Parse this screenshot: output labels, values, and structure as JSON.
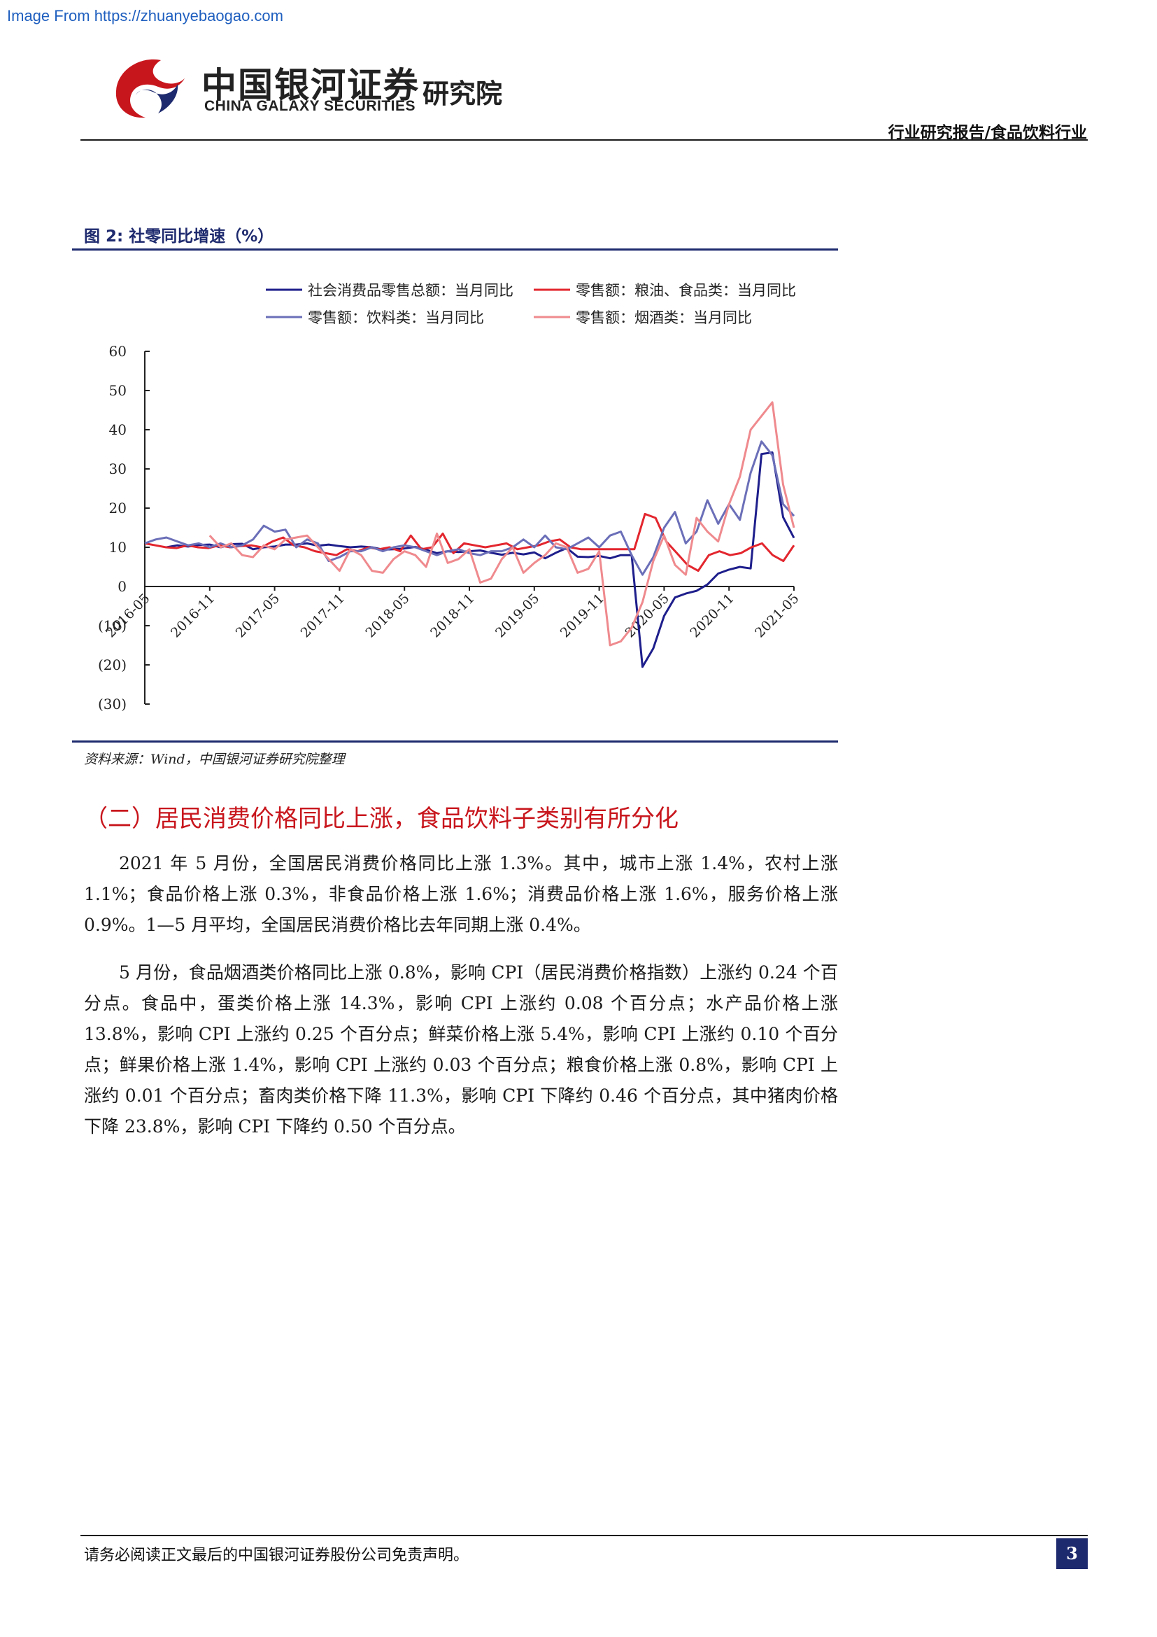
{
  "watermark": "Image From https://zhuanyebaogao.com",
  "header": {
    "brand_cn": "中国银河证券",
    "brand_en": "CHINA GALAXY SECURITIES",
    "institute": "研究院",
    "report_type": "行业研究报告/食品饮料行业",
    "colors": {
      "logo_red": "#c8161d",
      "logo_blue": "#1e2a6e"
    }
  },
  "figure": {
    "title": "图 2: 社零同比增速（%）",
    "source": "资料来源：Wind，中国银河证券研究院整理"
  },
  "chart_data": {
    "type": "line",
    "title": "",
    "xlabel": "",
    "ylabel": "",
    "ylim": [
      -30,
      60
    ],
    "y_ticks": [
      60,
      50,
      40,
      30,
      20,
      10,
      0,
      -10,
      -20,
      -30
    ],
    "y_tick_labels": [
      "60",
      "50",
      "40",
      "30",
      "20",
      "10",
      "0",
      "(10)",
      "(20)",
      "(30)"
    ],
    "x_tick_labels": [
      "2016-05",
      "2016-11",
      "2017-05",
      "2017-11",
      "2018-05",
      "2018-11",
      "2019-05",
      "2019-11",
      "2020-05",
      "2020-11",
      "2021-05"
    ],
    "x_tick_months": [
      0,
      6,
      12,
      18,
      24,
      30,
      36,
      42,
      48,
      54,
      60
    ],
    "x_month_range": [
      0,
      60
    ],
    "legend_position": "top",
    "series": [
      {
        "name": "社会消费品零售总额：当月同比",
        "color": "#1e1e8c",
        "values": [
          10.0,
          10.5,
          10.2,
          10.6,
          10.7,
          10.0,
          10.8,
          10.9,
          9.5,
          10.0,
          10.2,
          10.7,
          10.7,
          11.0,
          10.4,
          10.7,
          10.3,
          10.0,
          10.2,
          10.0,
          9.4,
          9.5,
          9.7,
          10.1,
          9.4,
          8.5,
          9.0,
          8.8,
          9.0,
          9.2,
          8.6,
          8.1,
          8.6,
          8.2,
          8.7,
          7.2,
          8.6,
          9.8,
          7.6,
          7.5,
          7.8,
          7.2,
          8.0,
          8.0,
          -20.5,
          -15.8,
          -7.5,
          -2.8,
          -1.8,
          -1.1,
          0.5,
          3.3,
          4.3,
          5.0,
          4.6,
          33.8,
          34.2,
          17.7,
          12.4
        ],
        "start_month": 2
      },
      {
        "name": "零售额：粮油、食品类：当月同比",
        "color": "#e3262e",
        "values": [
          11.0,
          10.5,
          10.0,
          9.8,
          10.5,
          10.0,
          9.8,
          10.5,
          10.0,
          10.3,
          10.5,
          10.0,
          11.5,
          12.5,
          10.5,
          10.0,
          9.0,
          8.5,
          8.0,
          9.5,
          9.0,
          10.0,
          9.5,
          10.0,
          9.0,
          13.0,
          9.5,
          10.0,
          13.5,
          8.5,
          11.0,
          10.5,
          10.0,
          10.5,
          11.0,
          9.5,
          10.0,
          10.5,
          11.5,
          12.0,
          10.0,
          9.5,
          9.5,
          9.5,
          9.5,
          9.5,
          9.5,
          18.5,
          17.5,
          11.5,
          8.5,
          5.5,
          4.0,
          8.0,
          9.0,
          8.0,
          8.5,
          10.0,
          11.0,
          8.0,
          6.5,
          10.5
        ],
        "start_month": 0
      },
      {
        "name": "零售额：饮料类：当月同比",
        "color": "#6b6fb8",
        "values": [
          11.0,
          12.0,
          12.5,
          11.5,
          10.5,
          11.0,
          10.0,
          11.0,
          10.0,
          10.5,
          12.0,
          15.5,
          14.0,
          14.5,
          10.0,
          12.0,
          11.0,
          6.5,
          7.5,
          9.0,
          9.0,
          10.0,
          9.0,
          10.0,
          10.5,
          10.0,
          9.0,
          8.0,
          9.0,
          9.5,
          8.5,
          8.0,
          9.0,
          9.0,
          10.0,
          12.0,
          10.0,
          13.0,
          10.0,
          9.5,
          11.0,
          12.5,
          10.0,
          13.0,
          14.0,
          8.0,
          3.0,
          7.5,
          15.0,
          19.0,
          11.0,
          14.0,
          22.0,
          16.0,
          21.0,
          17.0,
          29.0,
          37.0,
          33.5,
          21.0,
          18.0
        ],
        "start_month": 0
      },
      {
        "name": "零售额：烟酒类：当月同比",
        "color": "#ef8a8e",
        "values": [
          13.0,
          10.0,
          11.0,
          8.0,
          7.5,
          10.5,
          9.5,
          12.0,
          12.5,
          13.0,
          10.0,
          7.0,
          4.0,
          9.5,
          8.0,
          4.0,
          3.5,
          7.0,
          9.0,
          8.0,
          5.0,
          13.5,
          6.0,
          7.0,
          9.5,
          1.0,
          2.0,
          7.0,
          10.0,
          3.5,
          6.0,
          8.0,
          11.0,
          10.0,
          3.5,
          4.5,
          9.0,
          -15.0,
          -14.0,
          -10.5,
          -4.0,
          6.5,
          13.0,
          5.5,
          3.0,
          17.5,
          14.0,
          11.5,
          21.0,
          28.0,
          40.0,
          43.5,
          47.0,
          26.0,
          15.0
        ],
        "start_month": 6
      }
    ]
  },
  "section": {
    "heading": "（二）居民消费价格同比上涨，食品饮料子类别有所分化",
    "paragraphs": [
      "2021 年 5 月份，全国居民消费价格同比上涨 1.3%。其中，城市上涨 1.4%，农村上涨 1.1%；食品价格上涨 0.3%，非食品价格上涨 1.6%；消费品价格上涨 1.6%，服务价格上涨 0.9%。1—5 月平均，全国居民消费价格比去年同期上涨 0.4%。",
      "5 月份，食品烟酒类价格同比上涨 0.8%，影响 CPI（居民消费价格指数）上涨约 0.24 个百分点。食品中，蛋类价格上涨 14.3%，影响 CPI 上涨约 0.08 个百分点；水产品价格上涨 13.8%，影响 CPI 上涨约 0.25 个百分点；鲜菜价格上涨 5.4%，影响 CPI 上涨约 0.10 个百分点；鲜果价格上涨 1.4%，影响 CPI 上涨约 0.03 个百分点；粮食价格上涨 0.8%，影响 CPI 上涨约 0.01 个百分点；畜肉类价格下降 11.3%，影响 CPI 下降约 0.46 个百分点，其中猪肉价格下降 23.8%，影响 CPI 下降约 0.50 个百分点。"
    ]
  },
  "footer": {
    "disclaimer": "请务必阅读正文最后的中国银河证券股份公司免责声明。",
    "page_number": "3"
  }
}
